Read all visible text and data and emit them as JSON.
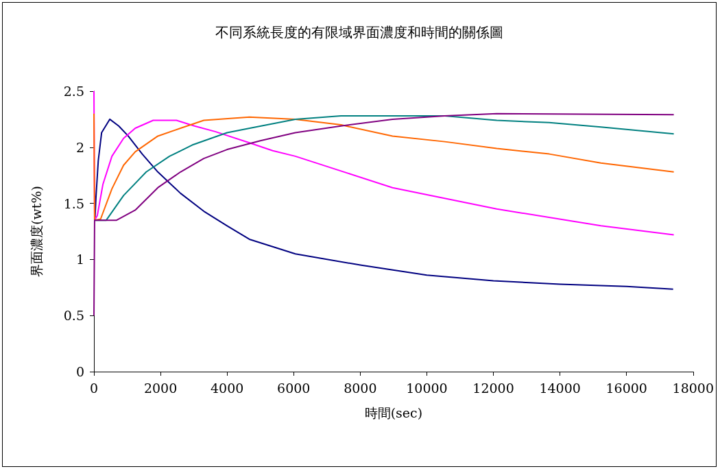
{
  "chart_data": {
    "type": "line",
    "title": "不同系統長度的有限域界面濃度和時間的關係圖",
    "xlabel": "時間(sec)",
    "ylabel": "界面濃度(wt%)",
    "xlim": [
      0,
      18000
    ],
    "xticks": [
      0,
      2000,
      4000,
      6000,
      8000,
      10000,
      12000,
      14000,
      16000,
      18000
    ],
    "ylim": [
      0,
      2.5
    ],
    "yticks": [
      0,
      0.5,
      1,
      1.5,
      2,
      2.5
    ],
    "grid": false,
    "marker": "none",
    "line_style": "solid",
    "series": [
      {
        "color": "#000080",
        "x": [
          0,
          30,
          60,
          130,
          230,
          475,
          745,
          1030,
          1450,
          1920,
          2600,
          3300,
          4000,
          4670,
          6050,
          8000,
          10000,
          12000,
          14000,
          16000,
          17400
        ],
        "values": [
          1.35,
          1.35,
          1.55,
          1.88,
          2.13,
          2.25,
          2.19,
          2.1,
          1.94,
          1.78,
          1.59,
          1.43,
          1.3,
          1.18,
          1.05,
          0.95,
          0.86,
          0.81,
          0.78,
          0.76,
          0.735
        ]
      },
      {
        "color": "#ff00ff",
        "x": [
          0,
          20,
          100,
          270,
          540,
          890,
          1240,
          1780,
          2480,
          3020,
          3640,
          4670,
          5370,
          6050,
          8970,
          12100,
          15230,
          17420
        ],
        "values": [
          2.5,
          1.35,
          1.39,
          1.67,
          1.92,
          2.08,
          2.17,
          2.24,
          2.24,
          2.19,
          2.14,
          2.04,
          1.97,
          1.92,
          1.64,
          1.45,
          1.3,
          1.22
        ]
      },
      {
        "color": "#ff6600",
        "x": [
          0,
          20,
          200,
          540,
          890,
          1240,
          1920,
          2600,
          3300,
          4670,
          6050,
          7420,
          8970,
          10540,
          12100,
          13680,
          15230,
          17420
        ],
        "values": [
          2.3,
          1.35,
          1.36,
          1.63,
          1.84,
          1.96,
          2.1,
          2.17,
          2.24,
          2.27,
          2.25,
          2.2,
          2.1,
          2.05,
          1.99,
          1.94,
          1.86,
          1.78
        ]
      },
      {
        "color": "#008080",
        "x": [
          0,
          370,
          890,
          1570,
          2270,
          2950,
          4000,
          5020,
          6050,
          7420,
          10540,
          12100,
          13680,
          15230,
          17420
        ],
        "values": [
          1.35,
          1.35,
          1.57,
          1.78,
          1.92,
          2.02,
          2.13,
          2.19,
          2.25,
          2.28,
          2.28,
          2.24,
          2.22,
          2.18,
          2.12
        ]
      },
      {
        "color": "#800080",
        "x": [
          0,
          20,
          680,
          1240,
          1920,
          2600,
          3300,
          4000,
          5020,
          6050,
          7420,
          8970,
          10540,
          12100,
          17420
        ],
        "values": [
          0.5,
          1.35,
          1.35,
          1.44,
          1.64,
          1.78,
          1.9,
          1.98,
          2.06,
          2.13,
          2.19,
          2.25,
          2.28,
          2.3,
          2.29
        ]
      }
    ]
  }
}
